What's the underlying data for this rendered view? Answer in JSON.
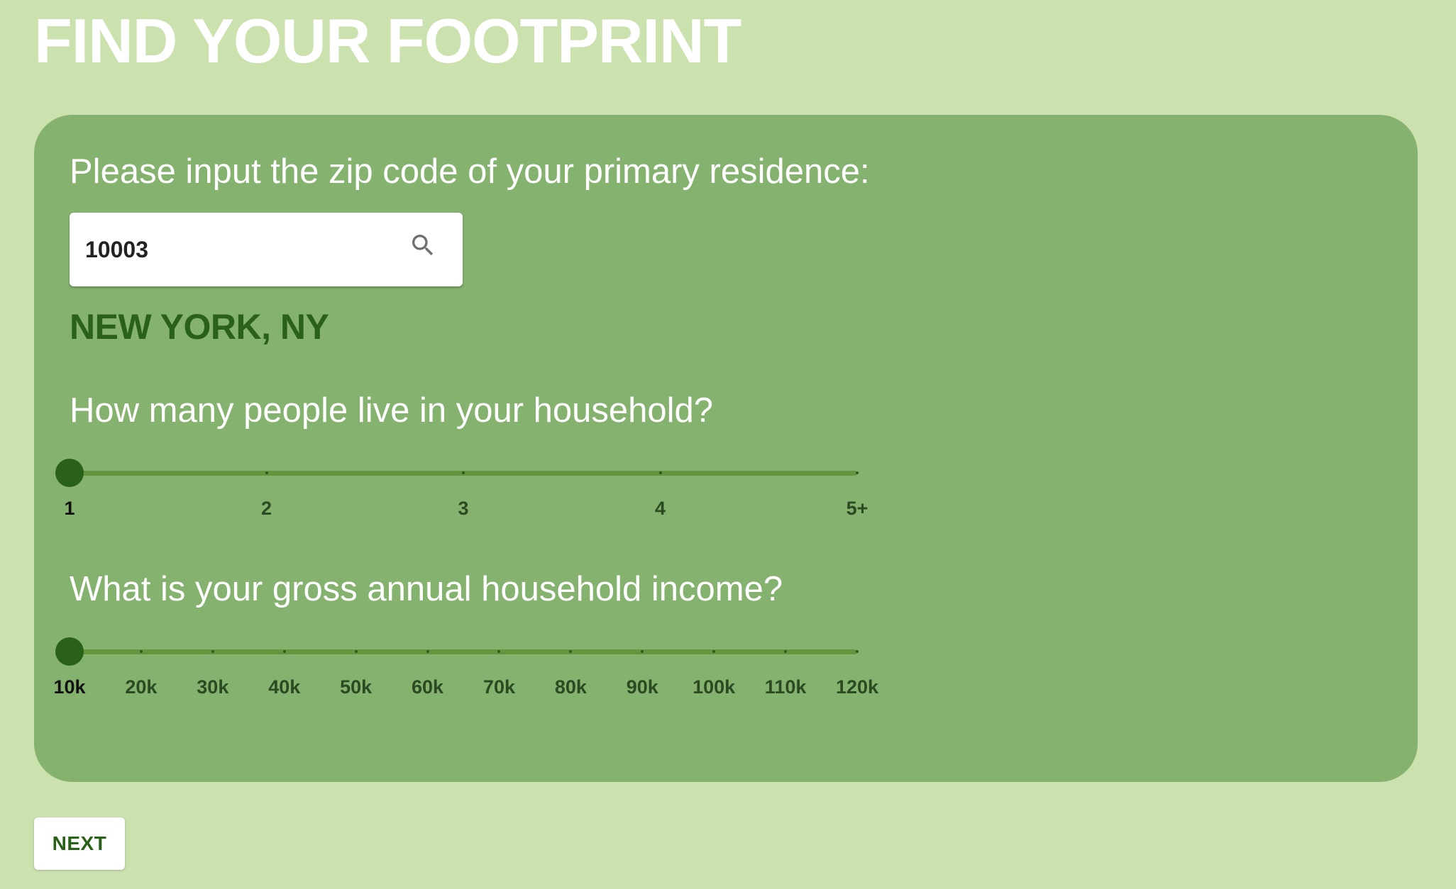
{
  "header": {
    "title": "FIND YOUR FOOTPRINT"
  },
  "zip_section": {
    "question": "Please input the zip code of your primary residence:",
    "zip_value": "10003",
    "search_icon": "search-icon",
    "city": "NEW YORK, NY"
  },
  "household_section": {
    "question": "How many people live in your household?",
    "options": [
      "1",
      "2",
      "3",
      "4",
      "5+"
    ],
    "selected_index": 0
  },
  "income_section": {
    "question": "What is your gross annual household income?",
    "options": [
      "10k",
      "20k",
      "30k",
      "40k",
      "50k",
      "60k",
      "70k",
      "80k",
      "90k",
      "100k",
      "110k",
      "120k"
    ],
    "selected_index": 0
  },
  "footer": {
    "next_label": "NEXT"
  },
  "colors": {
    "page_background": "#cbe1ae",
    "card_background": "#86b270",
    "accent_dark_green": "#2a6119",
    "track": "#65963e"
  }
}
